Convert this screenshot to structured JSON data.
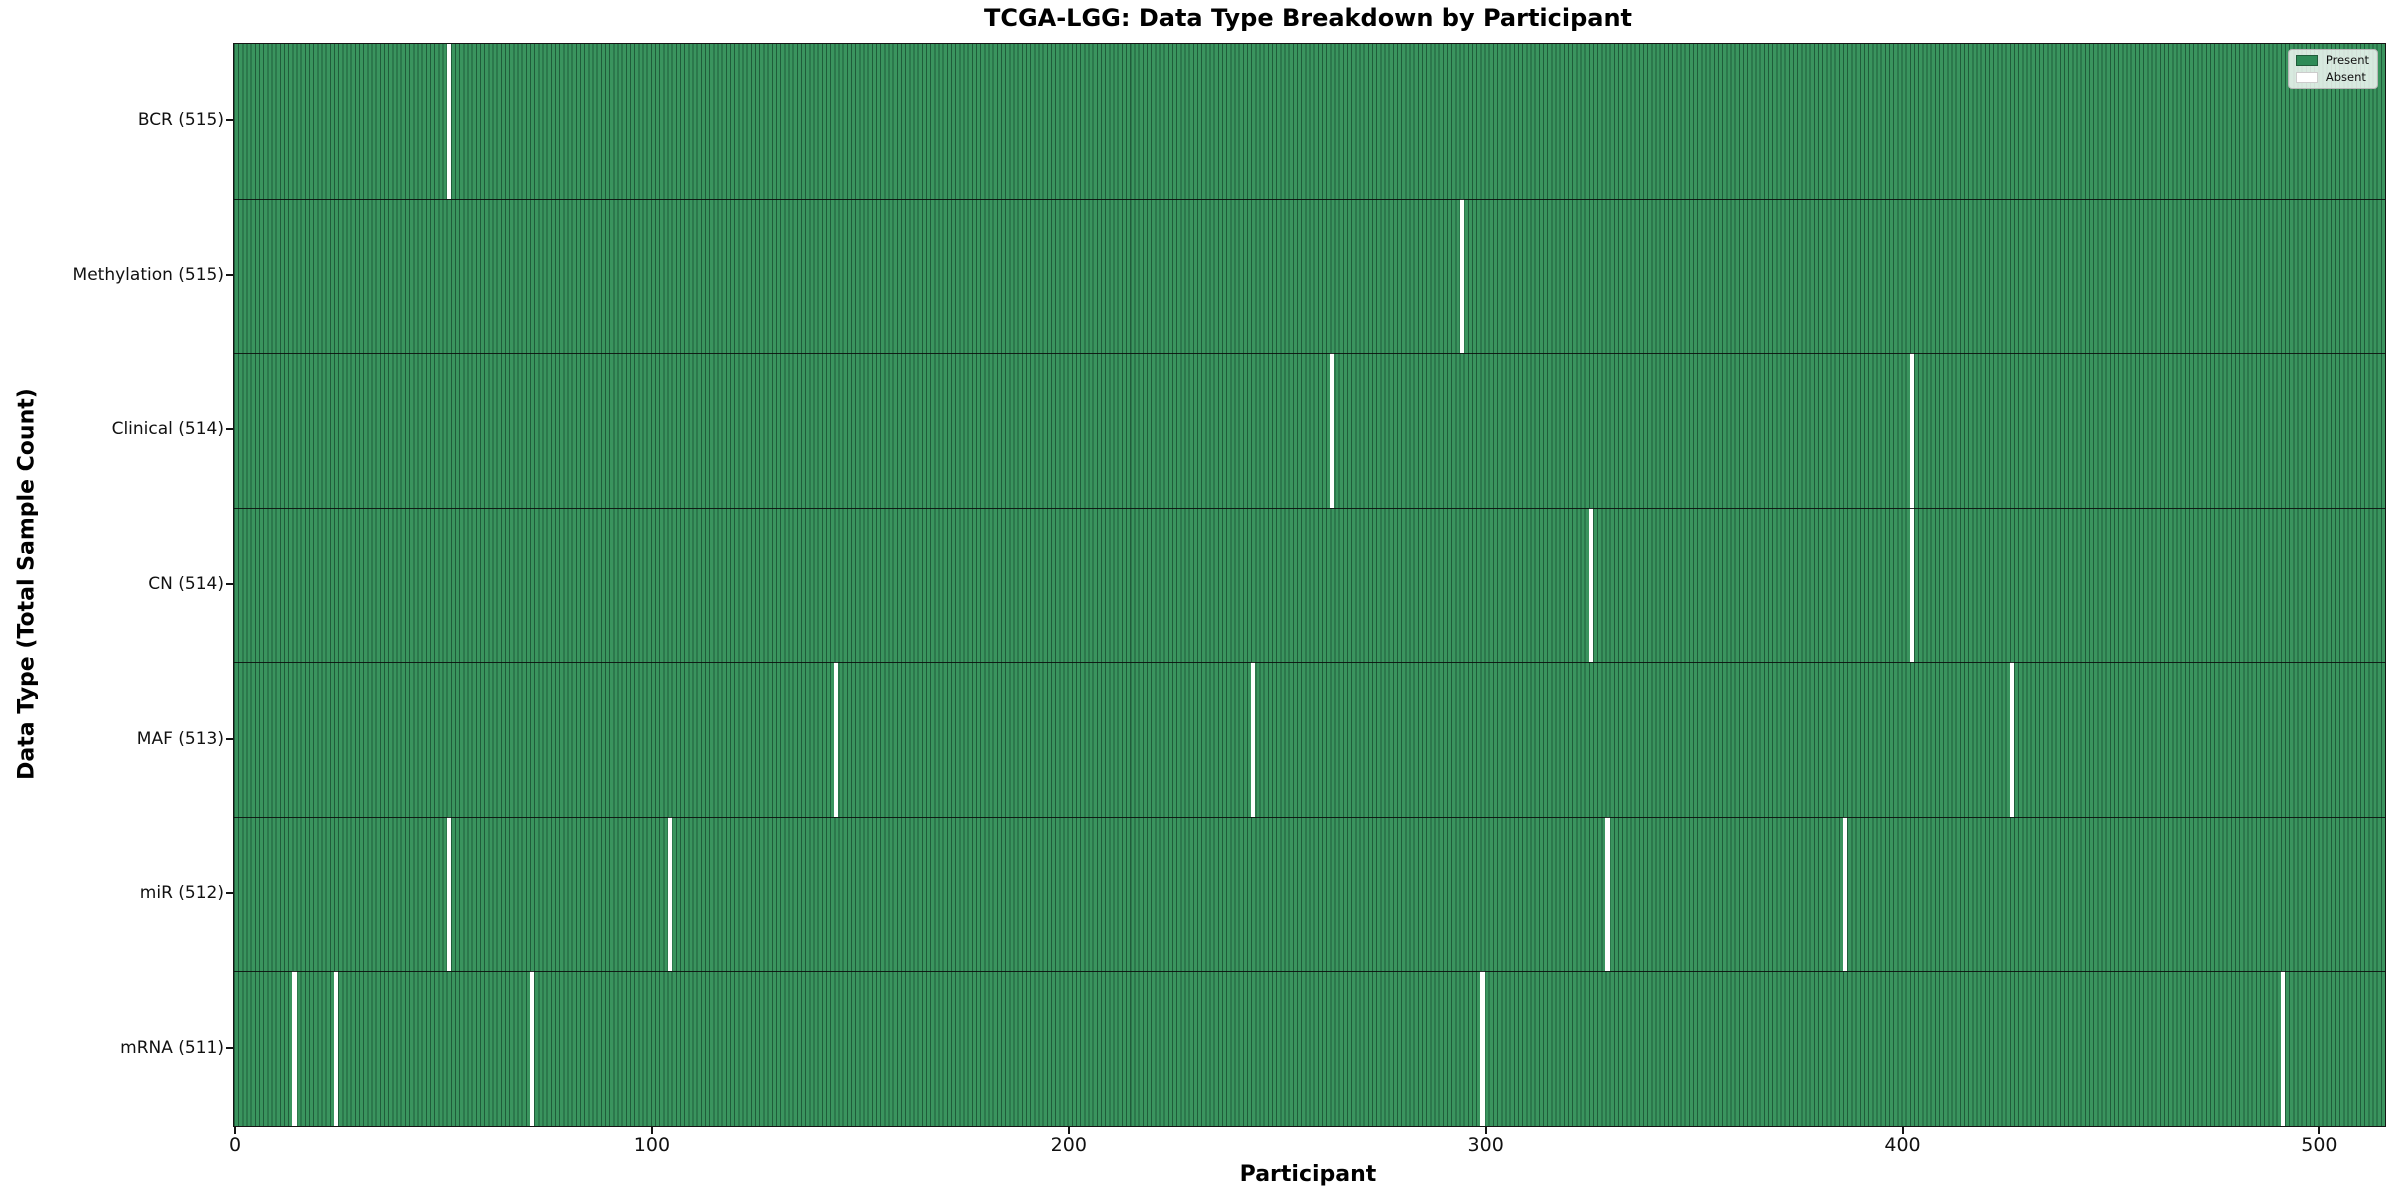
{
  "title": "TCGA-LGG: Data Type Breakdown by Participant",
  "chart_data": {
    "type": "heatmap",
    "title": "TCGA-LGG: Data Type Breakdown by Participant",
    "xlabel": "Participant",
    "ylabel": "Data Type (Total Sample Count)",
    "x_ticks": [
      0,
      100,
      200,
      300,
      400,
      500
    ],
    "x_range": [
      0,
      516
    ],
    "n_participants": 516,
    "grid": false,
    "legend_position": "upper right",
    "legend": [
      {
        "label": "Present",
        "color": "#2e8b57"
      },
      {
        "label": "Absent",
        "color": "#ffffff"
      }
    ],
    "colors": {
      "present_fill": "#3a945e",
      "bar_edge": "#1f5c3a",
      "absent": "#ffffff",
      "spine": "#151515"
    },
    "rows": [
      {
        "label": "BCR (515)",
        "data_type": "BCR",
        "present_count": 515,
        "absent_participants": [
          51
        ]
      },
      {
        "label": "Methylation (515)",
        "data_type": "Methylation",
        "present_count": 515,
        "absent_participants": [
          294
        ]
      },
      {
        "label": "Clinical (514)",
        "data_type": "Clinical",
        "present_count": 514,
        "absent_participants": [
          263,
          402
        ]
      },
      {
        "label": "CN (514)",
        "data_type": "CN",
        "present_count": 514,
        "absent_participants": [
          325,
          402
        ]
      },
      {
        "label": "MAF (513)",
        "data_type": "MAF",
        "present_count": 513,
        "absent_participants": [
          144,
          244,
          426
        ]
      },
      {
        "label": "miR (512)",
        "data_type": "miR",
        "present_count": 512,
        "absent_participants": [
          51,
          104,
          329,
          386
        ]
      },
      {
        "label": "mRNA (511)",
        "data_type": "mRNA",
        "present_count": 511,
        "absent_participants": [
          14,
          24,
          71,
          299,
          491
        ]
      }
    ]
  }
}
